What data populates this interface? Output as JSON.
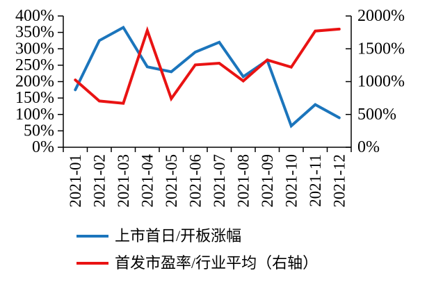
{
  "chart_data": {
    "type": "line",
    "title": "",
    "categories": [
      "2021-01",
      "2021-02",
      "2021-03",
      "2021-04",
      "2021-05",
      "2021-06",
      "2021-07",
      "2021-08",
      "2021-09",
      "2021-10",
      "2021-11",
      "2021-12"
    ],
    "series": [
      {
        "name": "上市首日/开板涨幅",
        "axis": "left",
        "color": "#1B75BC",
        "values": [
          175,
          325,
          365,
          245,
          230,
          290,
          320,
          215,
          265,
          65,
          130,
          90
        ]
      },
      {
        "name": "首发市盈率/行业平均（右轴）",
        "axis": "right",
        "color": "#E91313",
        "values": [
          1025,
          705,
          670,
          1780,
          740,
          1255,
          1280,
          1010,
          1330,
          1220,
          1770,
          1800
        ]
      }
    ],
    "left_axis": {
      "ylim": [
        0,
        400
      ],
      "step": 50,
      "tick_labels": [
        "0%",
        "50%",
        "100%",
        "150%",
        "200%",
        "250%",
        "300%",
        "350%",
        "400%"
      ]
    },
    "right_axis": {
      "ylim": [
        0,
        2000
      ],
      "step": 500,
      "tick_labels": [
        "0%",
        "500%",
        "1000%",
        "1500%",
        "2000%"
      ]
    },
    "grid": false,
    "legend_position": "bottom-left"
  },
  "legend": {
    "items": [
      {
        "label": "上市首日/开板涨幅",
        "color": "#1B75BC"
      },
      {
        "label": "首发市盈率/行业平均（右轴）",
        "color": "#E91313"
      }
    ]
  },
  "colors": {
    "axis": "#000000",
    "background": "#ffffff"
  }
}
